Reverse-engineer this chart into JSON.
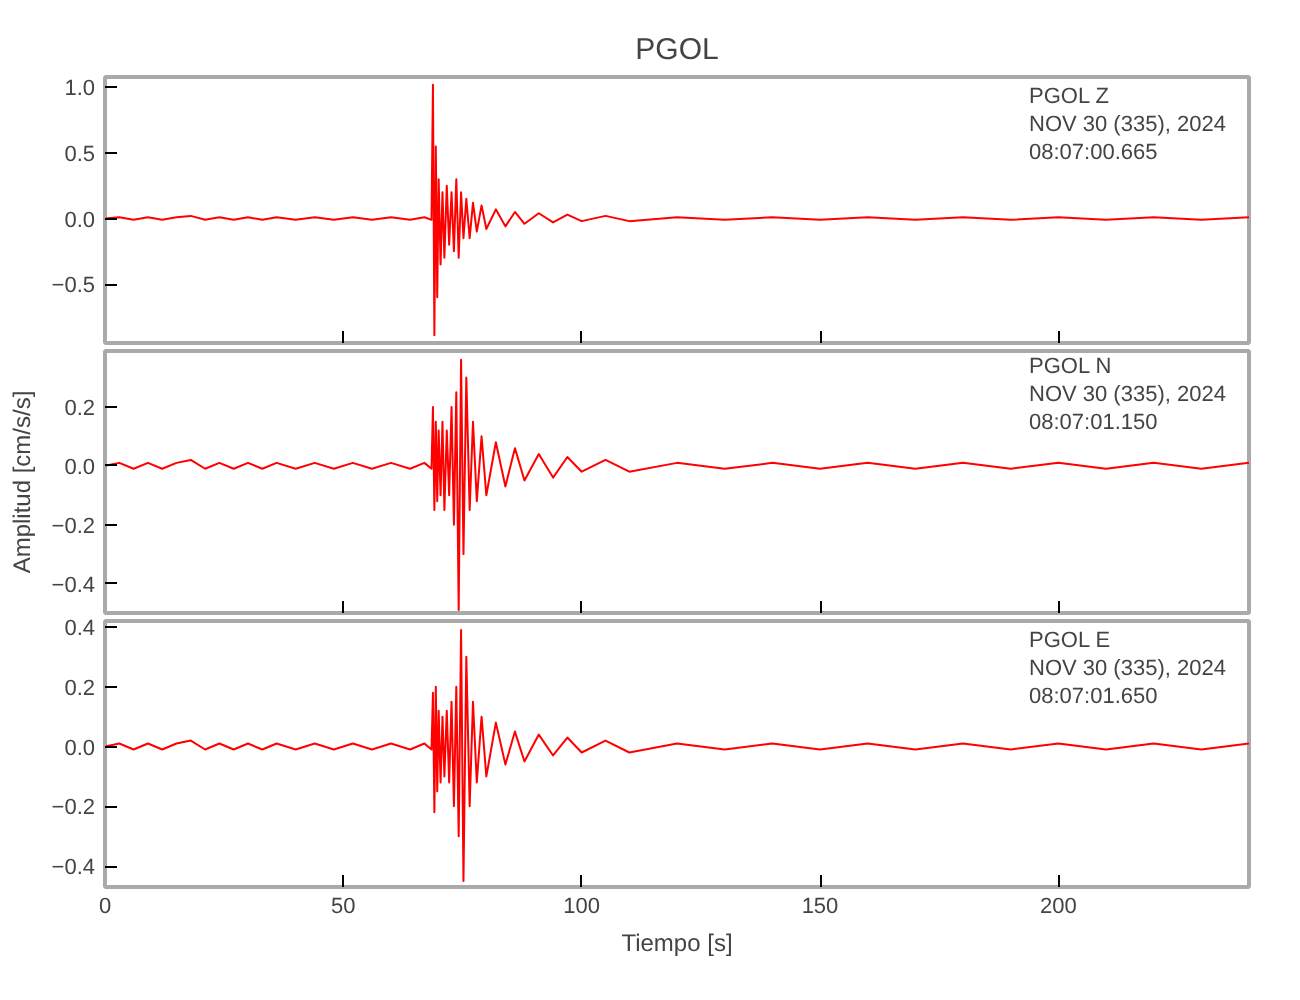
{
  "chart_data": [
    {
      "type": "line",
      "title": "PGOL",
      "x": [
        0,
        3,
        6,
        9,
        12,
        15,
        18,
        21,
        24,
        27,
        30,
        33,
        36,
        40,
        44,
        48,
        52,
        56,
        60,
        64,
        67,
        68.5,
        68.8,
        69.1,
        69.4,
        69.7,
        70,
        70.4,
        70.8,
        71.2,
        71.7,
        72.2,
        72.7,
        73.2,
        73.7,
        74.2,
        74.7,
        75.2,
        75.8,
        76.5,
        77.2,
        78,
        79,
        80,
        82,
        84,
        86,
        88,
        91,
        94,
        97,
        100,
        105,
        110,
        120,
        130,
        140,
        150,
        160,
        170,
        180,
        190,
        200,
        210,
        220,
        230,
        240
      ],
      "series": [
        {
          "color": "#ff0000",
          "values": [
            0,
            0.01,
            -0.01,
            0.01,
            -0.01,
            0.01,
            0.02,
            -0.01,
            0.01,
            -0.01,
            0.01,
            -0.01,
            0.01,
            -0.01,
            0.01,
            -0.01,
            0.01,
            -0.01,
            0.01,
            -0.01,
            0.01,
            -0.01,
            1.02,
            -0.89,
            0.55,
            -0.6,
            0.3,
            -0.35,
            0.2,
            -0.3,
            0.25,
            -0.2,
            0.2,
            -0.25,
            0.3,
            -0.3,
            0.2,
            -0.15,
            0.15,
            -0.15,
            0.12,
            -0.1,
            0.1,
            -0.08,
            0.07,
            -0.06,
            0.05,
            -0.04,
            0.04,
            -0.03,
            0.03,
            -0.02,
            0.02,
            -0.02,
            0.01,
            -0.01,
            0.01,
            -0.01,
            0.01,
            -0.01,
            0.01,
            -0.01,
            0.01,
            -0.01,
            0.01,
            -0.01,
            0.01
          ]
        }
      ],
      "xlim": [
        0,
        240
      ],
      "xticks": [
        0,
        50,
        100,
        150,
        200
      ],
      "ylim": [
        -0.95,
        1.08
      ],
      "yticks": [
        {
          "value": -0.5,
          "label": "−0.5"
        },
        {
          "value": 0,
          "label": "0.0"
        },
        {
          "value": 0.5,
          "label": "0.5"
        },
        {
          "value": 1,
          "label": "1.0"
        }
      ],
      "tick_labels": "y",
      "grid": false,
      "marker": "none",
      "line_style": "solid",
      "annotations": [
        "PGOL   Z",
        "NOV 30 (335), 2024",
        "08:07:00.665"
      ]
    },
    {
      "type": "line",
      "ylabel": "Amplitud [cm/s/s]",
      "x": [
        0,
        3,
        6,
        9,
        12,
        15,
        18,
        21,
        24,
        27,
        30,
        33,
        36,
        40,
        44,
        48,
        52,
        56,
        60,
        64,
        67,
        68.5,
        68.8,
        69.1,
        69.4,
        69.7,
        70,
        70.4,
        70.8,
        71.2,
        71.7,
        72.2,
        72.7,
        73.2,
        73.7,
        74.2,
        74.7,
        75.2,
        75.8,
        76.5,
        77.2,
        78,
        79,
        80,
        82,
        84,
        86,
        88,
        91,
        94,
        97,
        100,
        105,
        110,
        120,
        130,
        140,
        150,
        160,
        170,
        180,
        190,
        200,
        210,
        220,
        230,
        240
      ],
      "series": [
        {
          "color": "#ff0000",
          "values": [
            0,
            0.01,
            -0.01,
            0.01,
            -0.01,
            0.01,
            0.02,
            -0.01,
            0.01,
            -0.01,
            0.01,
            -0.01,
            0.01,
            -0.01,
            0.01,
            -0.01,
            0.01,
            -0.01,
            0.01,
            -0.01,
            0.01,
            -0.01,
            0.2,
            -0.15,
            0.15,
            -0.12,
            0.12,
            -0.1,
            0.15,
            -0.15,
            0.12,
            -0.1,
            0.2,
            -0.2,
            0.25,
            -0.49,
            0.36,
            -0.3,
            0.3,
            -0.15,
            0.15,
            -0.12,
            0.1,
            -0.1,
            0.08,
            -0.07,
            0.06,
            -0.05,
            0.04,
            -0.04,
            0.03,
            -0.02,
            0.02,
            -0.02,
            0.01,
            -0.01,
            0.01,
            -0.01,
            0.01,
            -0.01,
            0.01,
            -0.01,
            0.01,
            -0.01,
            0.01,
            -0.01,
            0.01
          ]
        }
      ],
      "xlim": [
        0,
        240
      ],
      "xticks": [
        0,
        50,
        100,
        150,
        200
      ],
      "ylim": [
        -0.5,
        0.39
      ],
      "yticks": [
        {
          "value": -0.4,
          "label": "−0.4"
        },
        {
          "value": -0.2,
          "label": "−0.2"
        },
        {
          "value": 0,
          "label": "0.0"
        },
        {
          "value": 0.2,
          "label": "0.2"
        }
      ],
      "tick_labels": "y",
      "grid": false,
      "marker": "none",
      "line_style": "solid",
      "annotations": [
        "PGOL   N",
        "NOV 30 (335), 2024",
        "08:07:01.150"
      ]
    },
    {
      "type": "line",
      "xlabel": "Tiempo [s]",
      "x": [
        0,
        3,
        6,
        9,
        12,
        15,
        18,
        21,
        24,
        27,
        30,
        33,
        36,
        40,
        44,
        48,
        52,
        56,
        60,
        64,
        67,
        68.5,
        68.8,
        69.1,
        69.4,
        69.7,
        70,
        70.4,
        70.8,
        71.2,
        71.7,
        72.2,
        72.7,
        73.2,
        73.7,
        74.2,
        74.7,
        75.2,
        75.8,
        76.5,
        77.2,
        78,
        79,
        80,
        82,
        84,
        86,
        88,
        91,
        94,
        97,
        100,
        105,
        110,
        120,
        130,
        140,
        150,
        160,
        170,
        180,
        190,
        200,
        210,
        220,
        230,
        240
      ],
      "series": [
        {
          "color": "#ff0000",
          "values": [
            0,
            0.01,
            -0.01,
            0.01,
            -0.01,
            0.01,
            0.02,
            -0.01,
            0.01,
            -0.01,
            0.01,
            -0.01,
            0.01,
            -0.01,
            0.01,
            -0.01,
            0.01,
            -0.01,
            0.01,
            -0.01,
            0.01,
            -0.01,
            0.18,
            -0.22,
            0.2,
            -0.15,
            0.12,
            -0.12,
            0.1,
            -0.1,
            0.12,
            -0.12,
            0.15,
            -0.2,
            0.2,
            -0.3,
            0.39,
            -0.45,
            0.3,
            -0.2,
            0.15,
            -0.12,
            0.1,
            -0.1,
            0.08,
            -0.06,
            0.05,
            -0.05,
            0.04,
            -0.03,
            0.03,
            -0.02,
            0.02,
            -0.02,
            0.01,
            -0.01,
            0.01,
            -0.01,
            0.01,
            -0.01,
            0.01,
            -0.01,
            0.01,
            -0.01,
            0.01,
            -0.01,
            0.01
          ]
        }
      ],
      "xlim": [
        0,
        240
      ],
      "xticks": [
        0,
        50,
        100,
        150,
        200
      ],
      "ylim": [
        -0.47,
        0.42
      ],
      "yticks": [
        {
          "value": -0.4,
          "label": "−0.4"
        },
        {
          "value": -0.2,
          "label": "−0.2"
        },
        {
          "value": 0,
          "label": "0.0"
        },
        {
          "value": 0.2,
          "label": "0.2"
        },
        {
          "value": 0.4,
          "label": "0.4"
        }
      ],
      "grid": false,
      "marker": "none",
      "line_style": "solid",
      "annotations": [
        "PGOL   E",
        "NOV 30 (335), 2024",
        "08:07:01.650"
      ]
    }
  ]
}
